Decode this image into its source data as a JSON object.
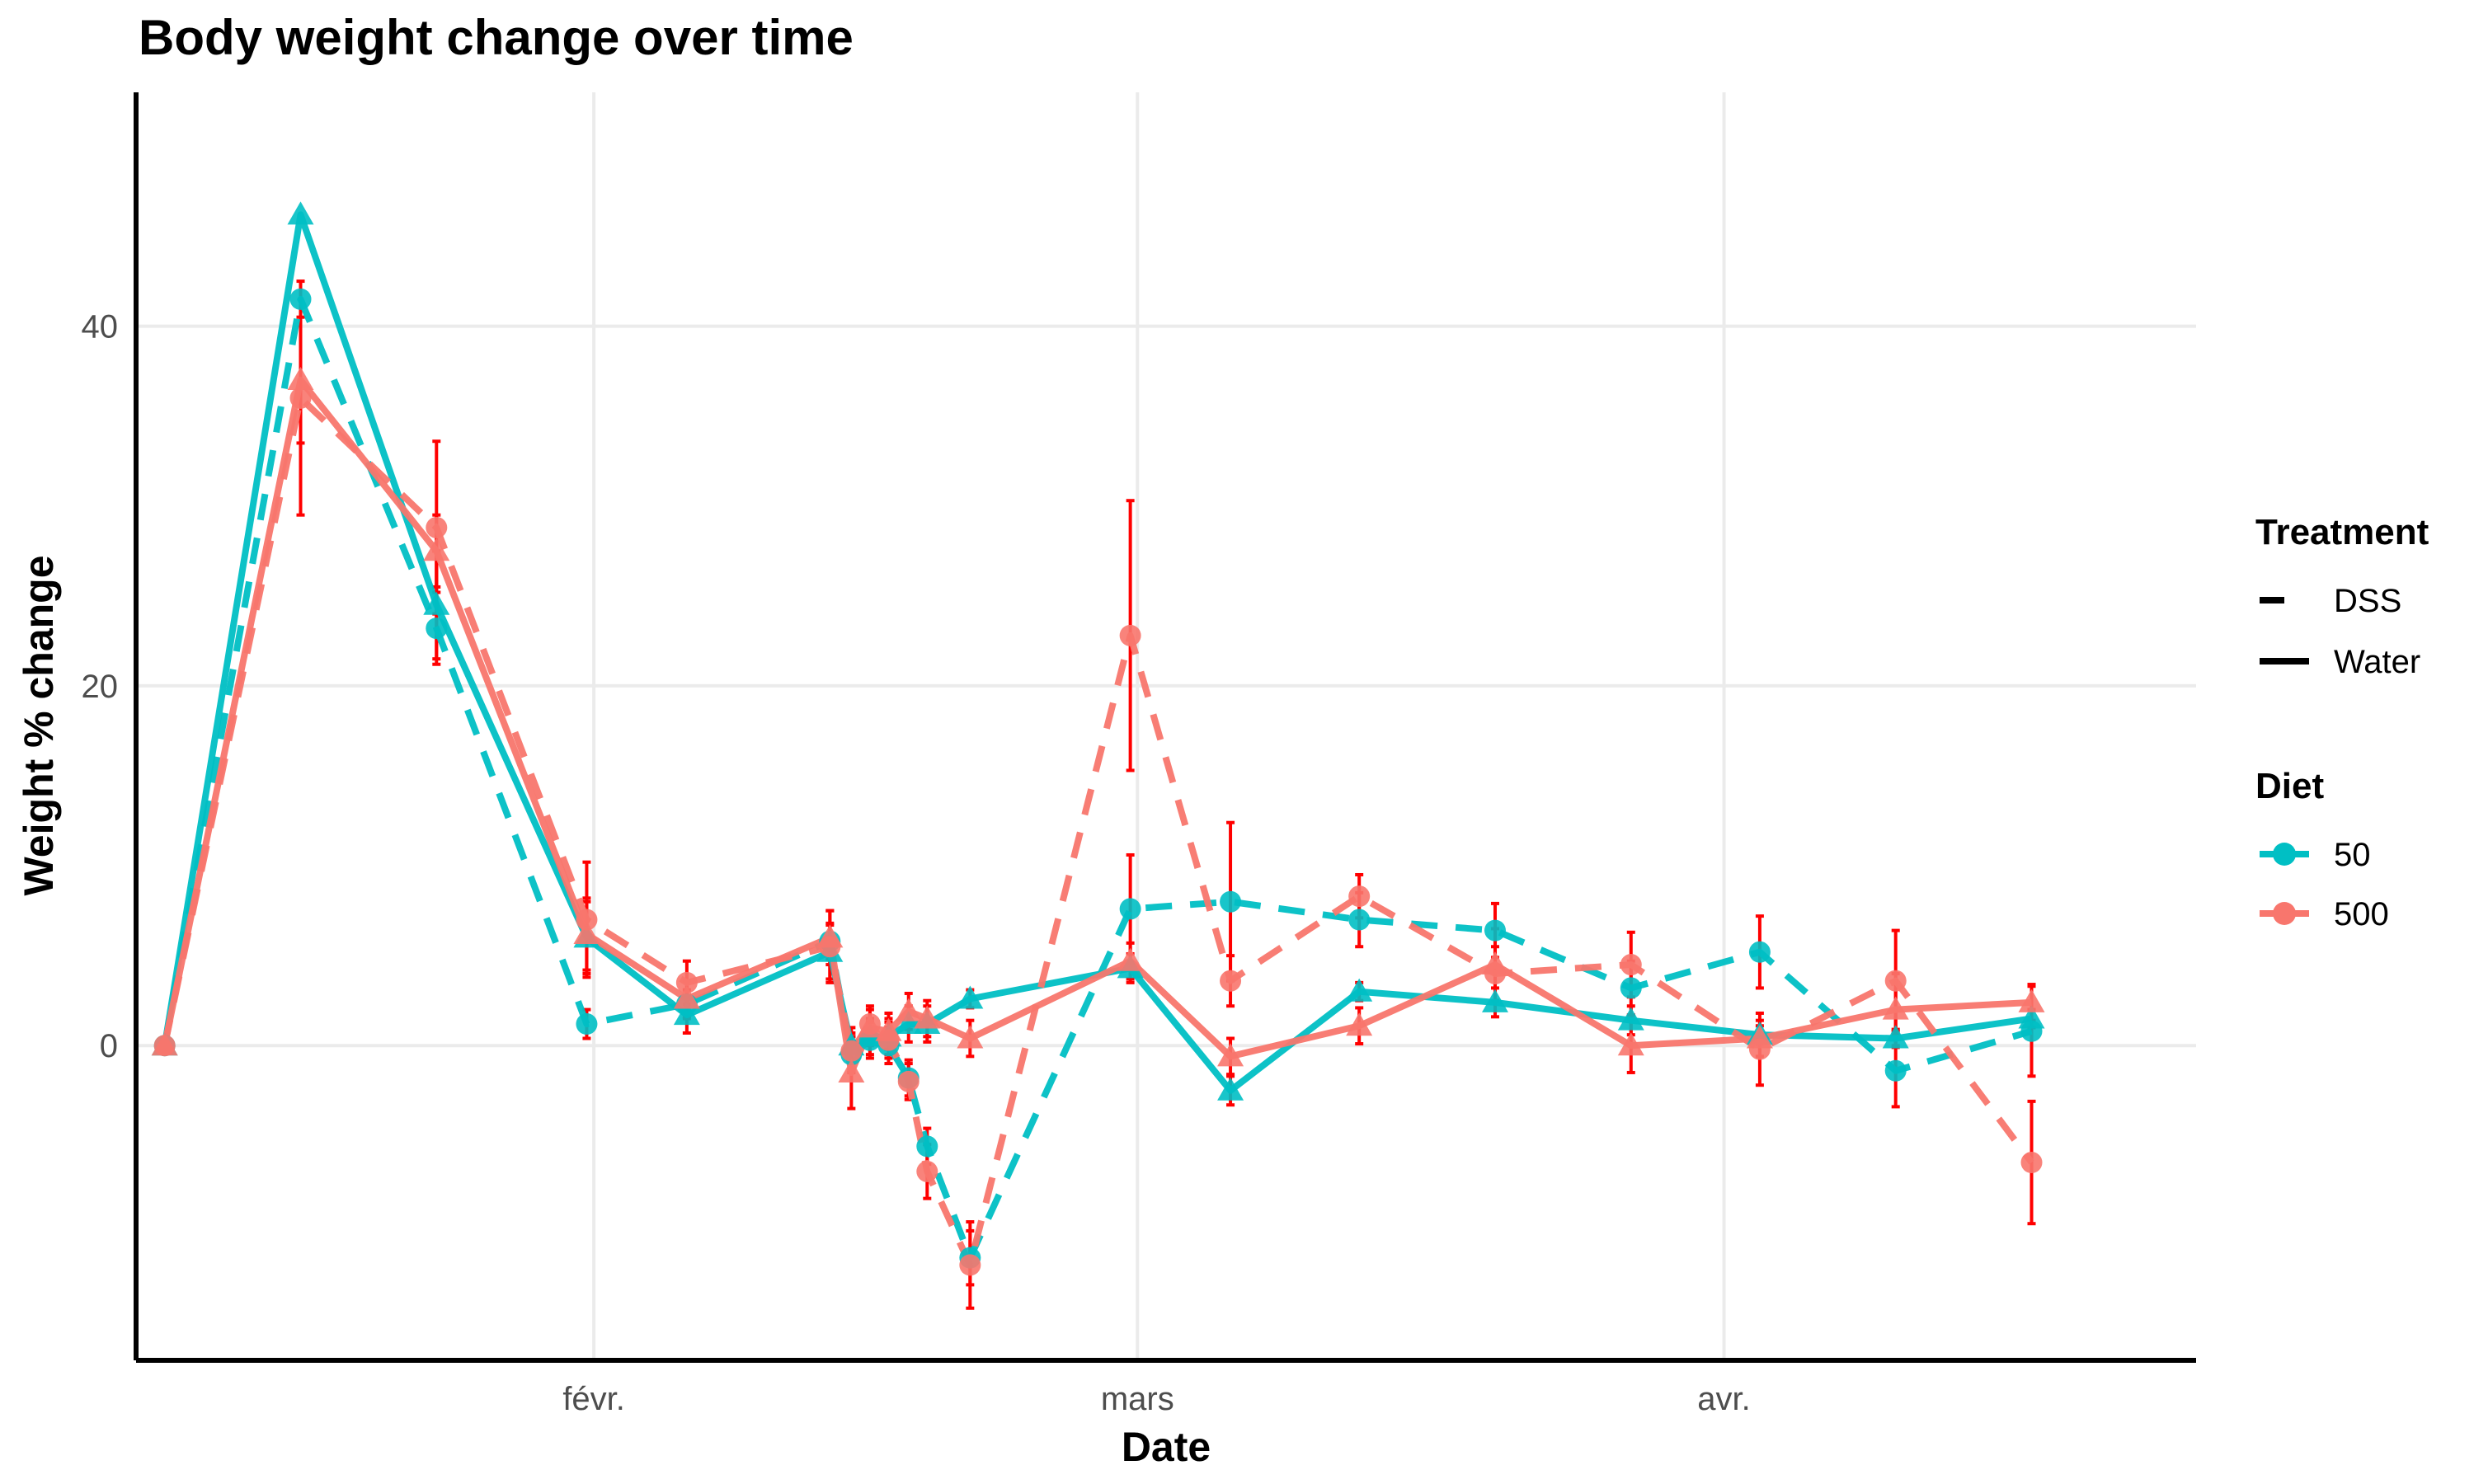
{
  "chart_data": {
    "type": "line",
    "title": "Body weight change over time",
    "xlabel": "Date",
    "ylabel": "Weight % change",
    "xlim": [
      -2,
      142
    ],
    "ylim": [
      -17.5,
      53
    ],
    "x_unit": "days since 2024-01-02",
    "x_ticks": [
      {
        "value": 30,
        "label": "févr."
      },
      {
        "value": 68,
        "label": "mars"
      },
      {
        "value": 109,
        "label": "avr."
      }
    ],
    "y_ticks": [
      {
        "value": 0,
        "label": "0"
      },
      {
        "value": 20,
        "label": "20"
      },
      {
        "value": 40,
        "label": "40"
      }
    ],
    "grid": true,
    "colors": {
      "50": "#00BFC4",
      "500": "#F8766D",
      "error_bar": "#FF0000",
      "grid": "#ebebeb",
      "axis": "#000000"
    },
    "legend": {
      "position": "right",
      "treatment_title": "Treatment",
      "treatment_entries": [
        {
          "label": "DSS",
          "dash": "dashed"
        },
        {
          "label": "Water",
          "dash": "solid"
        }
      ],
      "diet_title": "Diet",
      "diet_entries": [
        {
          "label": "50",
          "color_key": "50"
        },
        {
          "label": "500",
          "color_key": "500"
        }
      ]
    },
    "series": [
      {
        "name": "50 - Water",
        "diet": "50",
        "treatment": "Water",
        "marker": "triangle",
        "points": [
          {
            "x": 0,
            "y": 0,
            "err": 0
          },
          {
            "x": 9.5,
            "y": 46.2,
            "err": 0
          },
          {
            "x": 19,
            "y": 24.5,
            "err": 3
          },
          {
            "x": 29.5,
            "y": 6,
            "err": 2
          },
          {
            "x": 36.5,
            "y": 1.7,
            "err": 1
          },
          {
            "x": 46.5,
            "y": 5.2,
            "err": 1.5
          },
          {
            "x": 48,
            "y": 0,
            "err": 1
          },
          {
            "x": 49.3,
            "y": 0.5,
            "err": 1
          },
          {
            "x": 50.6,
            "y": 0.5,
            "err": 1
          },
          {
            "x": 52,
            "y": 1.2,
            "err": 1
          },
          {
            "x": 53.3,
            "y": 1.2,
            "err": 1
          },
          {
            "x": 56.3,
            "y": 2.6,
            "err": 0.5
          },
          {
            "x": 67.5,
            "y": 4.3,
            "err": 0.8
          },
          {
            "x": 74.5,
            "y": -2.5,
            "err": 0.8
          },
          {
            "x": 83.5,
            "y": 3,
            "err": 0.5
          },
          {
            "x": 93,
            "y": 2.4,
            "err": 0.8
          },
          {
            "x": 102.5,
            "y": 1.4,
            "err": 0.8
          },
          {
            "x": 111.5,
            "y": 0.6,
            "err": 0.5
          },
          {
            "x": 121,
            "y": 0.4,
            "err": 0.5
          },
          {
            "x": 130.5,
            "y": 1.5,
            "err": 0.5
          }
        ]
      },
      {
        "name": "50 - DSS",
        "diet": "50",
        "treatment": "DSS",
        "marker": "circle",
        "points": [
          {
            "x": 0,
            "y": 0,
            "err": 0
          },
          {
            "x": 9.5,
            "y": 41.5,
            "err": 0
          },
          {
            "x": 19,
            "y": 23.2,
            "err": 2
          },
          {
            "x": 29.5,
            "y": 1.2,
            "err": 0.8
          },
          {
            "x": 36.5,
            "y": 2.3,
            "err": 0.8
          },
          {
            "x": 46.5,
            "y": 5.8,
            "err": 1
          },
          {
            "x": 48,
            "y": -0.5,
            "err": 1
          },
          {
            "x": 49.3,
            "y": 0.3,
            "err": 1
          },
          {
            "x": 50.6,
            "y": 0,
            "err": 1
          },
          {
            "x": 52,
            "y": -1.8,
            "err": 1
          },
          {
            "x": 53.3,
            "y": -5.6,
            "err": 1
          },
          {
            "x": 56.3,
            "y": -11.8,
            "err": 1.5
          },
          {
            "x": 67.5,
            "y": 7.6,
            "err": 3
          },
          {
            "x": 74.5,
            "y": 8,
            "err": 4.4
          },
          {
            "x": 83.5,
            "y": 7,
            "err": 1.5
          },
          {
            "x": 93,
            "y": 6.4,
            "err": 1.5
          },
          {
            "x": 102.5,
            "y": 3.2,
            "err": 1.5
          },
          {
            "x": 111.5,
            "y": 5.2,
            "err": 2
          },
          {
            "x": 121,
            "y": -1.4,
            "err": 2
          },
          {
            "x": 130.5,
            "y": 0.8,
            "err": 2.5
          }
        ]
      },
      {
        "name": "500 - Water",
        "diet": "500",
        "treatment": "Water",
        "marker": "triangle",
        "points": [
          {
            "x": 0,
            "y": 0,
            "err": 0
          },
          {
            "x": 9.5,
            "y": 37,
            "err": 3.5
          },
          {
            "x": 19,
            "y": 27.5,
            "err": 2
          },
          {
            "x": 29.5,
            "y": 6.2,
            "err": 2
          },
          {
            "x": 36.5,
            "y": 2.6,
            "err": 1
          },
          {
            "x": 46.5,
            "y": 6,
            "err": 1.5
          },
          {
            "x": 48,
            "y": -1.5,
            "err": 2
          },
          {
            "x": 49.3,
            "y": 1,
            "err": 1
          },
          {
            "x": 50.6,
            "y": 0.8,
            "err": 1
          },
          {
            "x": 52,
            "y": 1.9,
            "err": 1
          },
          {
            "x": 53.3,
            "y": 1.5,
            "err": 1
          },
          {
            "x": 56.3,
            "y": 0.4,
            "err": 1
          },
          {
            "x": 67.5,
            "y": 4.7,
            "err": 1
          },
          {
            "x": 74.5,
            "y": -0.6,
            "err": 1
          },
          {
            "x": 83.5,
            "y": 1.1,
            "err": 1
          },
          {
            "x": 93,
            "y": 4.5,
            "err": 2
          },
          {
            "x": 102.5,
            "y": 0,
            "err": 1.5
          },
          {
            "x": 111.5,
            "y": 0.4,
            "err": 1
          },
          {
            "x": 121,
            "y": 2,
            "err": 2
          },
          {
            "x": 130.5,
            "y": 2.4,
            "err": 1
          }
        ]
      },
      {
        "name": "500 - DSS",
        "diet": "500",
        "treatment": "DSS",
        "marker": "circle",
        "points": [
          {
            "x": 0,
            "y": 0,
            "err": 0
          },
          {
            "x": 9.5,
            "y": 36,
            "err": 6.5
          },
          {
            "x": 19,
            "y": 28.8,
            "err": 4.8
          },
          {
            "x": 29.5,
            "y": 7,
            "err": 3.2
          },
          {
            "x": 36.5,
            "y": 3.5,
            "err": 1.2
          },
          {
            "x": 46.5,
            "y": 5.5,
            "err": 2
          },
          {
            "x": 48,
            "y": -0.3,
            "err": 1
          },
          {
            "x": 49.3,
            "y": 1.2,
            "err": 1
          },
          {
            "x": 50.6,
            "y": 0.3,
            "err": 1
          },
          {
            "x": 52,
            "y": -2,
            "err": 1
          },
          {
            "x": 53.3,
            "y": -7,
            "err": 1.5
          },
          {
            "x": 56.3,
            "y": -12.2,
            "err": 2.4
          },
          {
            "x": 67.5,
            "y": 22.8,
            "err": 7.5
          },
          {
            "x": 74.5,
            "y": 3.6,
            "err": 1.4
          },
          {
            "x": 83.5,
            "y": 8.3,
            "err": 1.2
          },
          {
            "x": 93,
            "y": 4,
            "err": 1.5
          },
          {
            "x": 102.5,
            "y": 4.5,
            "err": 1.8
          },
          {
            "x": 111.5,
            "y": -0.2,
            "err": 2
          },
          {
            "x": 121,
            "y": 3.6,
            "err": 2.8
          },
          {
            "x": 130.5,
            "y": -6.5,
            "err": 3.4
          }
        ]
      }
    ]
  }
}
